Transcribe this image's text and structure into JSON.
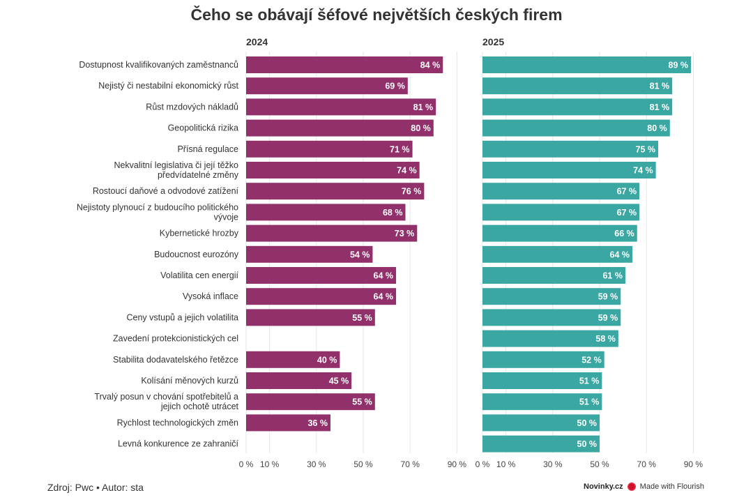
{
  "title": "Čeho se obávají šéfové největších českých firem",
  "footer": {
    "source": "Zdroj: Pwc • Autor: sta",
    "brand": "Novinky.cz",
    "made_with": "Made with Flourish"
  },
  "colors": {
    "series_2024": "#92306b",
    "series_2025": "#3ba7a3",
    "grid": "#e6e6e6"
  },
  "icons": [
    "flourish-icon"
  ],
  "chart_data": [
    {
      "type": "bar",
      "orientation": "horizontal",
      "title": "2024",
      "xlim": [
        0,
        90
      ],
      "x_ticks": [
        0,
        10,
        30,
        50,
        70,
        90
      ],
      "x_tick_labels": [
        "0 %",
        "10 %",
        "30 %",
        "50 %",
        "70 %",
        "90 %"
      ],
      "categories": [
        "Dostupnost kvalifikovaných zaměstnanců",
        "Nejistý či nestabilní ekonomický růst",
        "Růst mzdových nákladů",
        "Geopolitická rizika",
        "Přísná regulace",
        "Nekvalitní legislativa či její těžko předvídatelné změny",
        "Rostoucí daňové a odvodové zatížení",
        "Nejistoty plynoucí z budoucího politického vývoje",
        "Kybernetické hrozby",
        "Budoucnost eurozóny",
        "Volatilita cen energií",
        "Vysoká inflace",
        "Ceny vstupů a jejich volatilita",
        "Zavedení protekcionistických cel",
        "Stabilita dodavatelského řetězce",
        "Kolísání měnových kurzů",
        "Trvalý posun v chování spotřebitelů a jejich ochotě utrácet",
        "Rychlost technologických změn",
        "Levná konkurence ze zahraničí"
      ],
      "values": [
        84,
        69,
        81,
        80,
        71,
        74,
        76,
        68,
        73,
        54,
        64,
        64,
        55,
        null,
        40,
        45,
        55,
        36,
        null
      ],
      "labels": [
        "84 %",
        "69 %",
        "81 %",
        "80 %",
        "71 %",
        "74 %",
        "76 %",
        "68 %",
        "73 %",
        "54 %",
        "64 %",
        "64 %",
        "55 %",
        "",
        "40 %",
        "45 %",
        "55 %",
        "36 %",
        ""
      ]
    },
    {
      "type": "bar",
      "orientation": "horizontal",
      "title": "2025",
      "xlim": [
        0,
        90
      ],
      "x_ticks": [
        0,
        10,
        30,
        50,
        70,
        90
      ],
      "x_tick_labels": [
        "0 %",
        "10 %",
        "30 %",
        "50 %",
        "70 %",
        "90 %"
      ],
      "values": [
        89,
        81,
        81,
        80,
        75,
        74,
        67,
        67,
        66,
        64,
        61,
        59,
        59,
        58,
        52,
        51,
        51,
        50,
        50
      ],
      "labels": [
        "89 %",
        "81 %",
        "81 %",
        "80 %",
        "75 %",
        "74 %",
        "67 %",
        "67 %",
        "66 %",
        "64 %",
        "61 %",
        "59 %",
        "59 %",
        "58 %",
        "52 %",
        "51 %",
        "51 %",
        "50 %",
        "50 %"
      ]
    }
  ]
}
